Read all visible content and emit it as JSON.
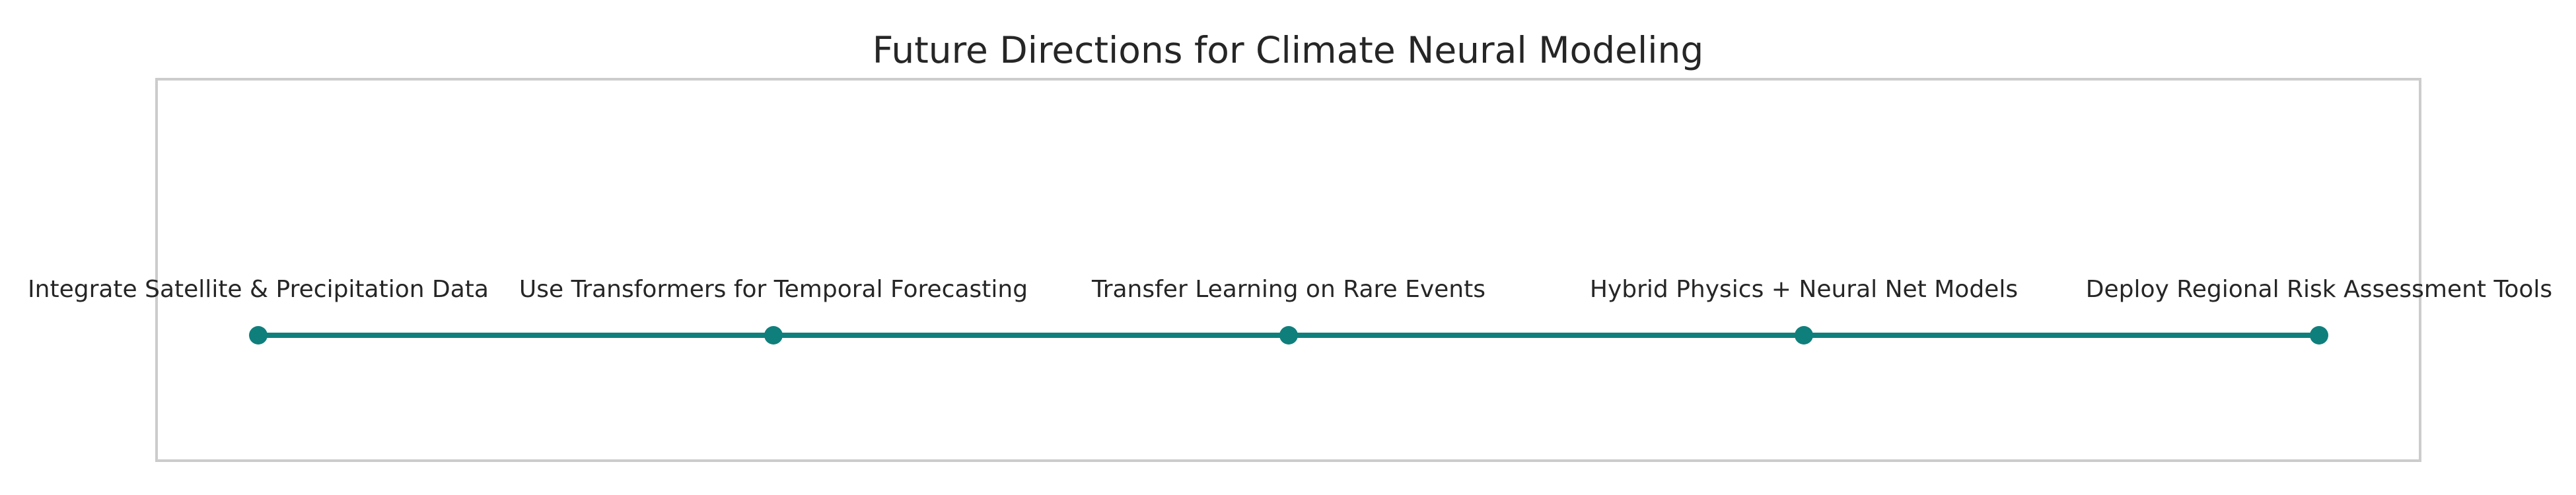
{
  "title": "Future Directions for Climate Neural Modeling",
  "colors": {
    "line": "#0f7f7c",
    "frame": "#cccccc",
    "text": "#262626",
    "background": "#ffffff"
  },
  "milestones": [
    {
      "label": "Integrate Satellite & Precipitation Data"
    },
    {
      "label": "Use Transformers for Temporal Forecasting"
    },
    {
      "label": "Transfer Learning on Rare Events"
    },
    {
      "label": "Hybrid Physics + Neural Net Models"
    },
    {
      "label": "Deploy Regional Risk Assessment Tools"
    }
  ]
}
